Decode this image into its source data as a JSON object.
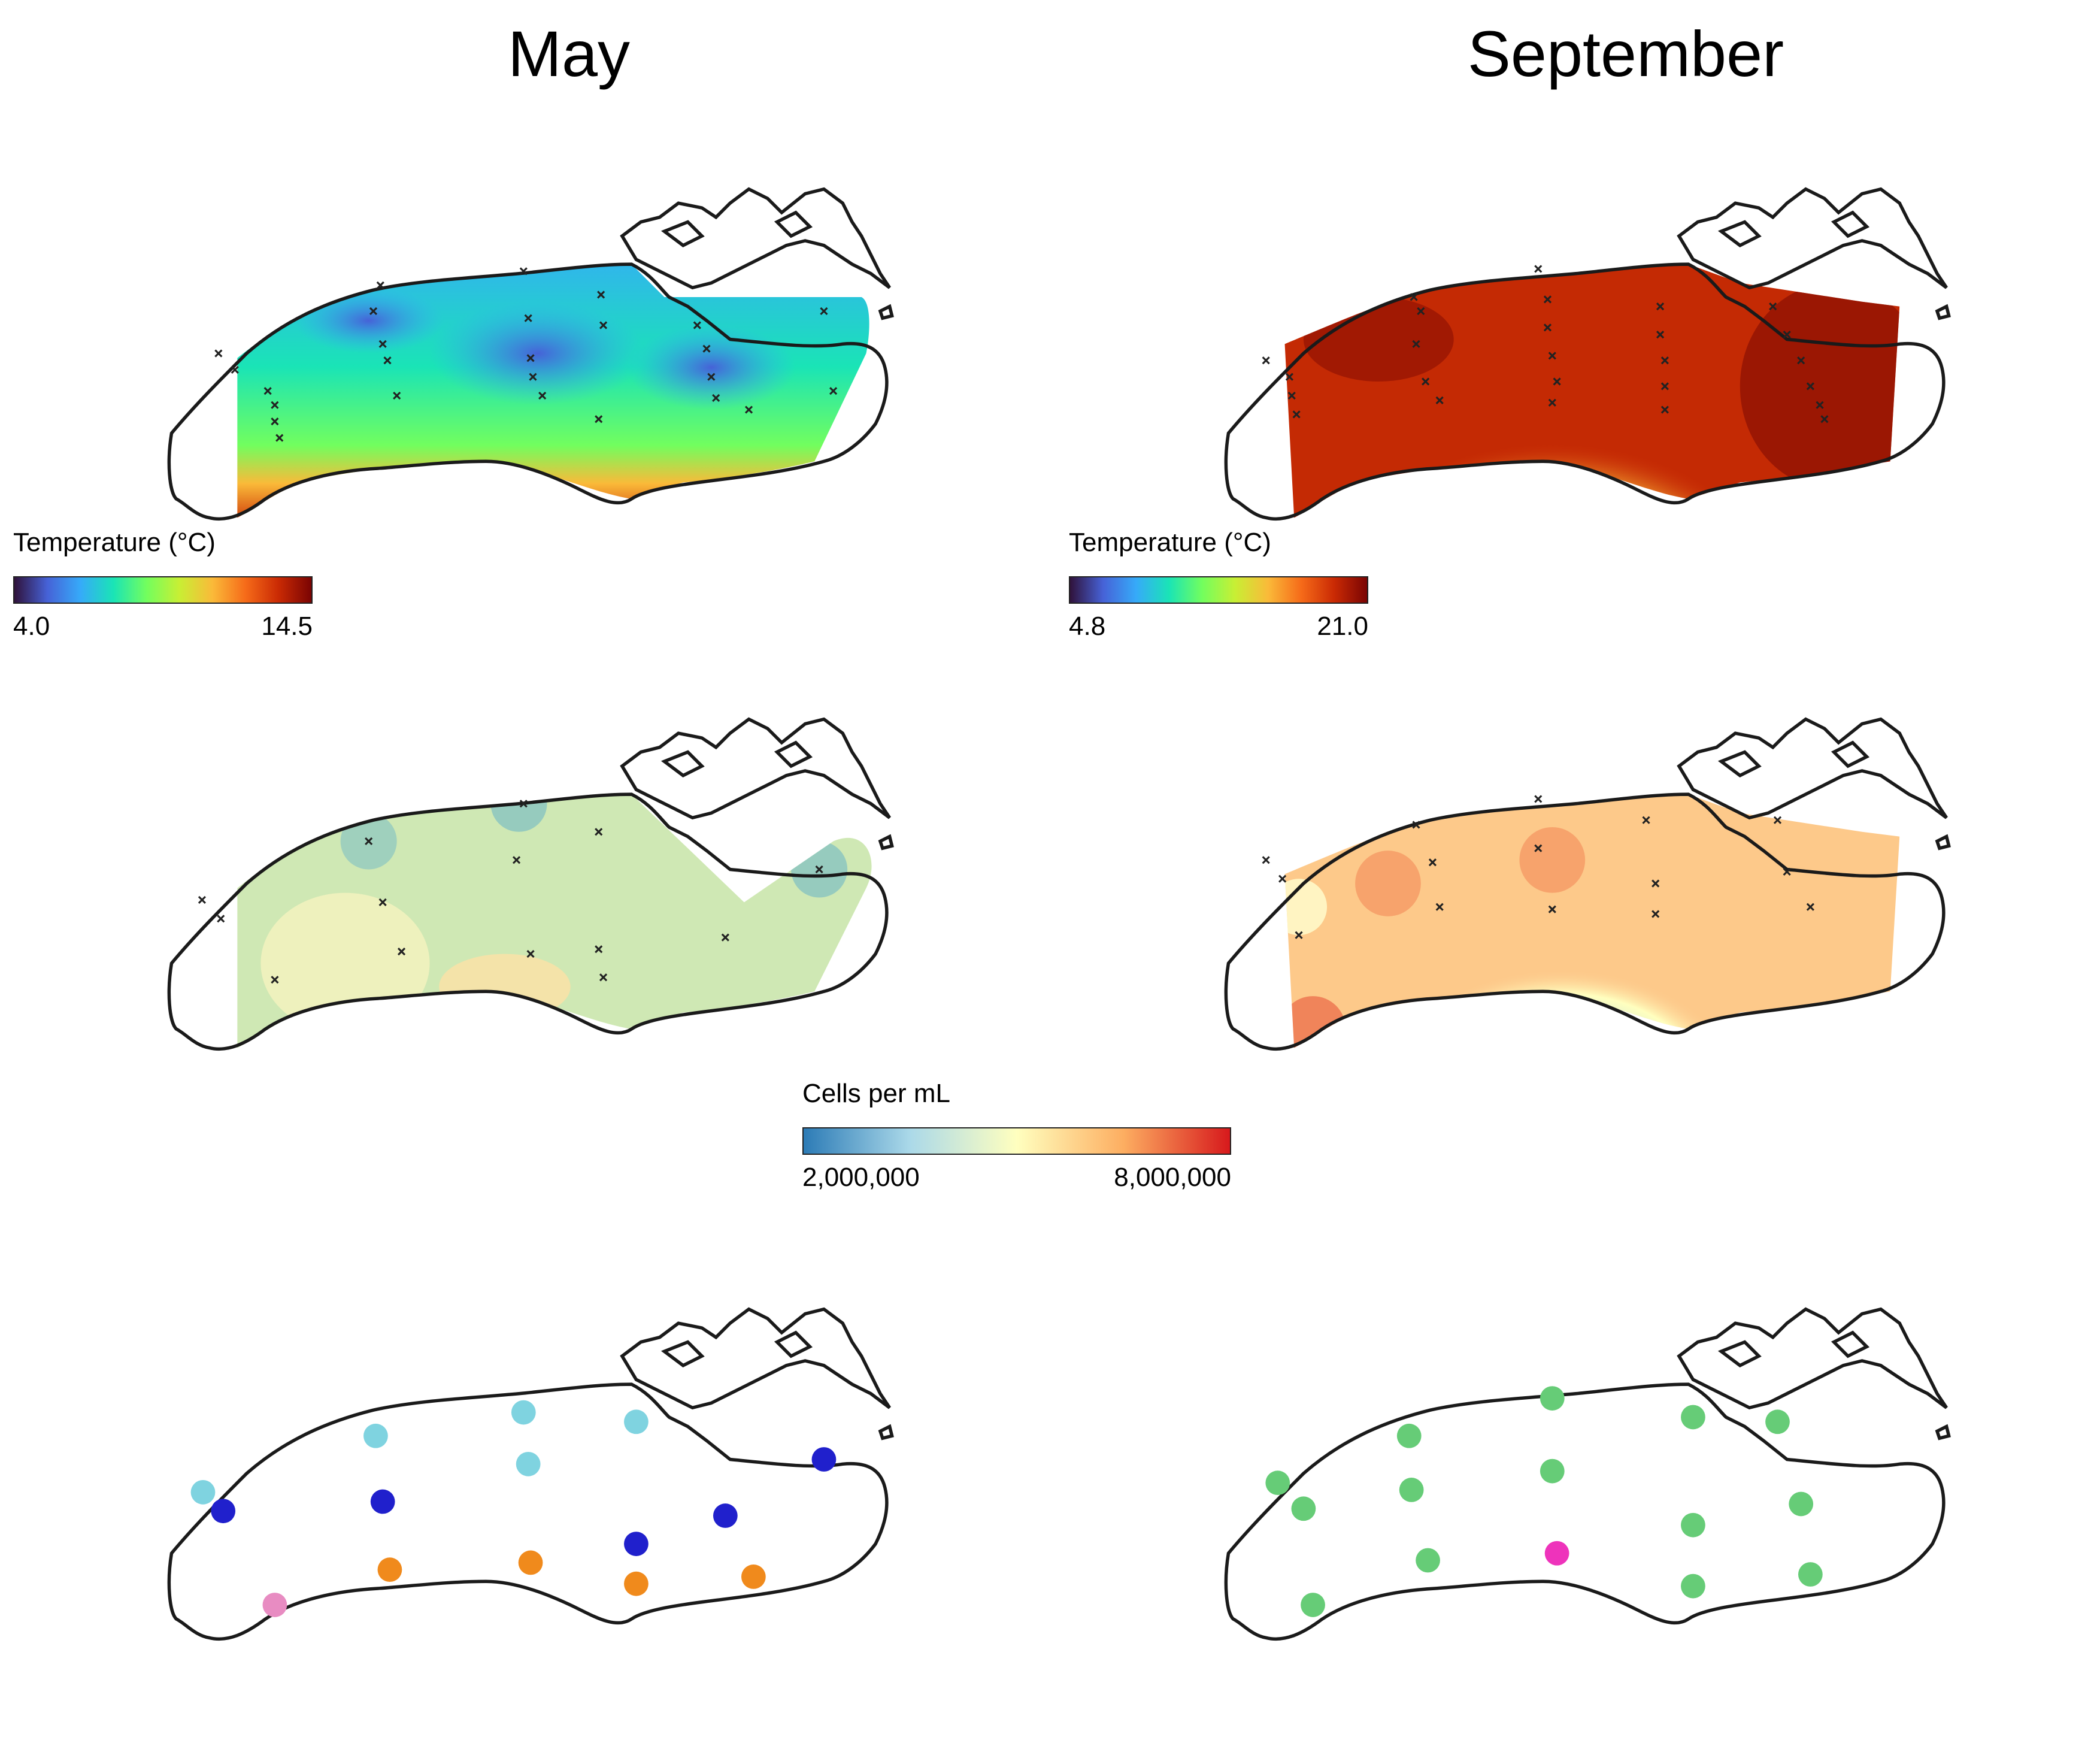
{
  "columns": {
    "left_title": "May",
    "right_title": "September"
  },
  "colorbars": {
    "may_temperature": {
      "label": "Temperature (°C)",
      "min": "4.0",
      "max": "14.5",
      "palette": [
        "#30123b",
        "#4662d7",
        "#36aaf9",
        "#1ae4b6",
        "#72fe5e",
        "#c8ef34",
        "#faba39",
        "#f66b19",
        "#ca2a04",
        "#7a0403"
      ]
    },
    "sep_temperature": {
      "label": "Temperature (°C)",
      "min": "4.8",
      "max": "21.0",
      "palette": [
        "#30123b",
        "#4662d7",
        "#36aaf9",
        "#1ae4b6",
        "#72fe5e",
        "#c8ef34",
        "#faba39",
        "#f66b19",
        "#ca2a04",
        "#7a0403"
      ]
    },
    "cells": {
      "label": "Cells per mL",
      "min": "2,000,000",
      "max": "8,000,000",
      "palette": [
        "#2c7bb6",
        "#abd9e9",
        "#ffffbf",
        "#fdae61",
        "#d7191c"
      ]
    }
  },
  "cluster_colors": {
    "light_blue": "#7fd3e0",
    "dark_blue": "#2020cc",
    "orange": "#f08a1c",
    "pink": "#e88cc2",
    "green": "#66cc77",
    "magenta": "#ee33bb"
  }
}
